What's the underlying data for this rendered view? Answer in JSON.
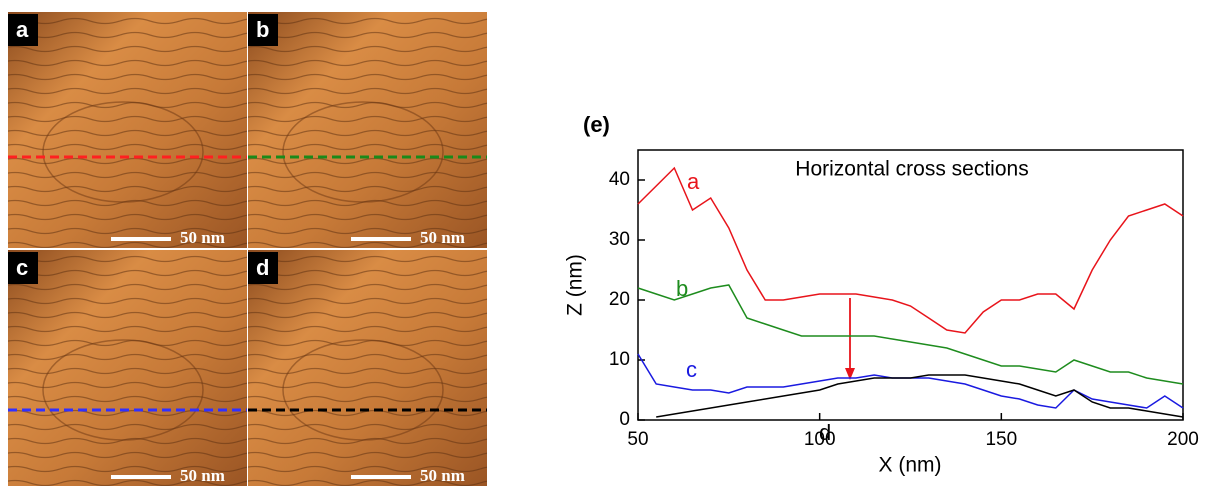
{
  "panels": [
    {
      "label": "a",
      "scale_bar": "50 nm"
    },
    {
      "label": "b",
      "scale_bar": "50 nm"
    },
    {
      "label": "c",
      "scale_bar": "50 nm"
    },
    {
      "label": "d",
      "scale_bar": "50 nm"
    }
  ],
  "chart_data": {
    "type": "line",
    "panel_label": "(e)",
    "annotation": "Horizontal cross sections",
    "x_label": "X (nm)",
    "y_label": "Z (nm)",
    "x": [
      50,
      55,
      60,
      65,
      70,
      75,
      80,
      85,
      90,
      95,
      100,
      105,
      110,
      115,
      120,
      125,
      130,
      135,
      140,
      145,
      150,
      155,
      160,
      165,
      170,
      175,
      180,
      185,
      190,
      195,
      200
    ],
    "series": [
      {
        "name": "a",
        "color": "#e8141b",
        "values": [
          36,
          39,
          42,
          35,
          37,
          32,
          25,
          20,
          20,
          20.5,
          21,
          21,
          21,
          20.5,
          20,
          19,
          17,
          15,
          14.5,
          18,
          20,
          20,
          21,
          21,
          18.5,
          25,
          30,
          34,
          35,
          36,
          34
        ]
      },
      {
        "name": "b",
        "color": "#1e8c1e",
        "values": [
          22,
          21,
          20,
          21,
          22,
          22.5,
          17,
          16,
          15,
          14,
          14,
          14,
          14,
          14,
          13.5,
          13,
          12.5,
          12,
          11,
          10,
          9,
          9,
          8.5,
          8,
          10,
          9,
          8,
          8,
          7,
          6.5,
          6
        ]
      },
      {
        "name": "c",
        "color": "#1a1ae0",
        "values": [
          11,
          6,
          5.5,
          5,
          5,
          4.5,
          5.5,
          5.5,
          5.5,
          6,
          6.5,
          7,
          7,
          7.5,
          7,
          7,
          7,
          6.5,
          6,
          5,
          4,
          3.5,
          2.5,
          2,
          5,
          3.5,
          3,
          2.5,
          2,
          4,
          2
        ]
      },
      {
        "name": "d",
        "color": "#000000",
        "values": [
          null,
          0.5,
          1,
          1.5,
          2,
          2.5,
          3,
          3.5,
          4,
          4.5,
          5,
          6,
          6.5,
          7,
          7,
          7,
          7.5,
          7.5,
          7.5,
          7,
          6.5,
          6,
          5,
          4,
          5,
          3,
          2,
          2,
          1.5,
          1,
          0.5
        ]
      }
    ],
    "xlim": [
      50,
      200
    ],
    "ylim": [
      0,
      45
    ],
    "xticks": [
      50,
      100,
      150,
      200
    ],
    "yticks": [
      0,
      10,
      20,
      30,
      40
    ]
  }
}
